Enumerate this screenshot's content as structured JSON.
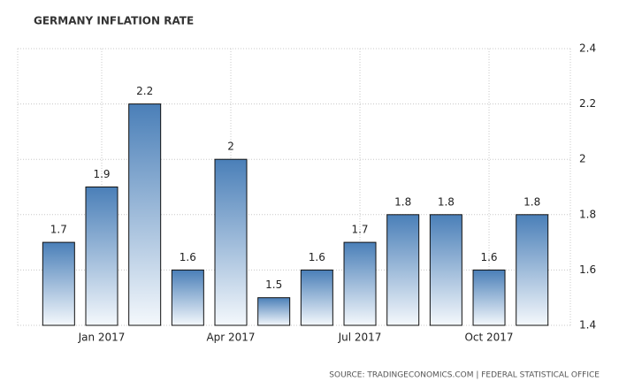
{
  "chart_data": {
    "type": "bar",
    "title": "GERMANY INFLATION RATE",
    "categories": [
      null,
      "Jan 2017",
      null,
      null,
      "Apr 2017",
      null,
      null,
      "Jul 2017",
      null,
      null,
      "Oct 2017",
      null
    ],
    "values": [
      1.7,
      1.9,
      2.2,
      1.6,
      2,
      1.5,
      1.6,
      1.7,
      1.8,
      1.8,
      1.6,
      1.8
    ],
    "color": "#4a7fb8",
    "ylim": [
      1.4,
      2.4
    ],
    "yticks": [
      1.4,
      1.6,
      1.8,
      2,
      2.2,
      2.4
    ],
    "grid": true,
    "y_axis_side": "right",
    "source": "SOURCE: TRADINGECONOMICS.COM | FEDERAL STATISTICAL OFFICE"
  }
}
